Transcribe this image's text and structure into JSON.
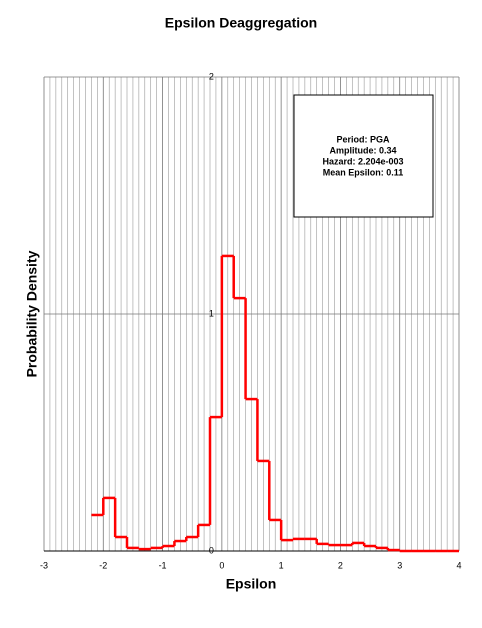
{
  "chart_data": {
    "type": "histogram",
    "title": "Epsilon Deaggregation",
    "xlabel": "Epsilon",
    "ylabel": "Probability Density",
    "bins": [
      -2.2,
      -2.0,
      -1.8,
      -1.6,
      -1.4,
      -1.2,
      -1.0,
      -0.8,
      -0.6,
      -0.4,
      -0.2,
      0.0,
      0.2,
      0.4,
      0.6,
      0.8,
      1.0,
      1.2,
      1.4,
      1.6,
      1.8,
      2.0,
      2.2,
      2.4,
      2.6,
      2.8,
      3.0,
      3.2,
      3.4,
      3.6,
      3.8,
      4.0
    ],
    "counts": [
      0.152,
      0.224,
      0.059,
      0.013,
      0.008,
      0.013,
      0.021,
      0.042,
      0.059,
      0.11,
      0.565,
      1.245,
      1.067,
      0.641,
      0.38,
      0.131,
      0.046,
      0.051,
      0.051,
      0.03,
      0.025,
      0.025,
      0.034,
      0.021,
      0.013,
      0.004,
      0,
      0,
      0,
      0,
      0
    ],
    "color": "#ff0000",
    "xlim": [
      -3,
      4
    ],
    "xticks": [
      -3,
      -2,
      -1,
      0,
      1,
      2,
      3,
      4
    ],
    "ylim": [
      0,
      2
    ],
    "yticks": [
      0,
      1,
      2
    ],
    "grid": true,
    "annotation": [
      "Period: PGA",
      "Amplitude: 0.34",
      "Hazard: 2.204e-003",
      "Mean Epsilon: 0.11"
    ]
  }
}
